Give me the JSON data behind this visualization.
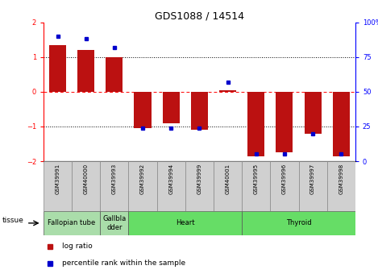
{
  "title": "GDS1088 / 14514",
  "samples": [
    "GSM39991",
    "GSM40000",
    "GSM39993",
    "GSM39992",
    "GSM39994",
    "GSM39999",
    "GSM40001",
    "GSM39995",
    "GSM39996",
    "GSM39997",
    "GSM39998"
  ],
  "log_ratio": [
    1.35,
    1.2,
    1.0,
    -1.05,
    -0.9,
    -1.1,
    0.05,
    -1.85,
    -1.75,
    -1.2,
    -1.85
  ],
  "percentile_rank": [
    90,
    88,
    82,
    24,
    24,
    24,
    57,
    5,
    5,
    20,
    5
  ],
  "tissues": [
    {
      "label": "Fallopian tube",
      "start": 0,
      "end": 1
    },
    {
      "label": "Gallbla\ndder",
      "start": 2,
      "end": 2
    },
    {
      "label": "Heart",
      "start": 3,
      "end": 6
    },
    {
      "label": "Thyroid",
      "start": 7,
      "end": 10
    }
  ],
  "tissue_colors": [
    "#AADDAA",
    "#AADDAA",
    "#66DD66",
    "#66DD66"
  ],
  "bar_color": "#BB1111",
  "dot_color": "#0000CC",
  "ylim": [
    -2,
    2
  ],
  "y2lim": [
    0,
    100
  ],
  "yticks": [
    -2,
    -1,
    0,
    1,
    2
  ],
  "y2ticks": [
    0,
    25,
    50,
    75,
    100
  ],
  "bg_color": "#FFFFFF",
  "sample_box_color": "#D0D0D0",
  "title_fontsize": 9,
  "tick_fontsize": 6,
  "sample_fontsize": 5,
  "tissue_fontsize": 6,
  "legend_fontsize": 6.5
}
